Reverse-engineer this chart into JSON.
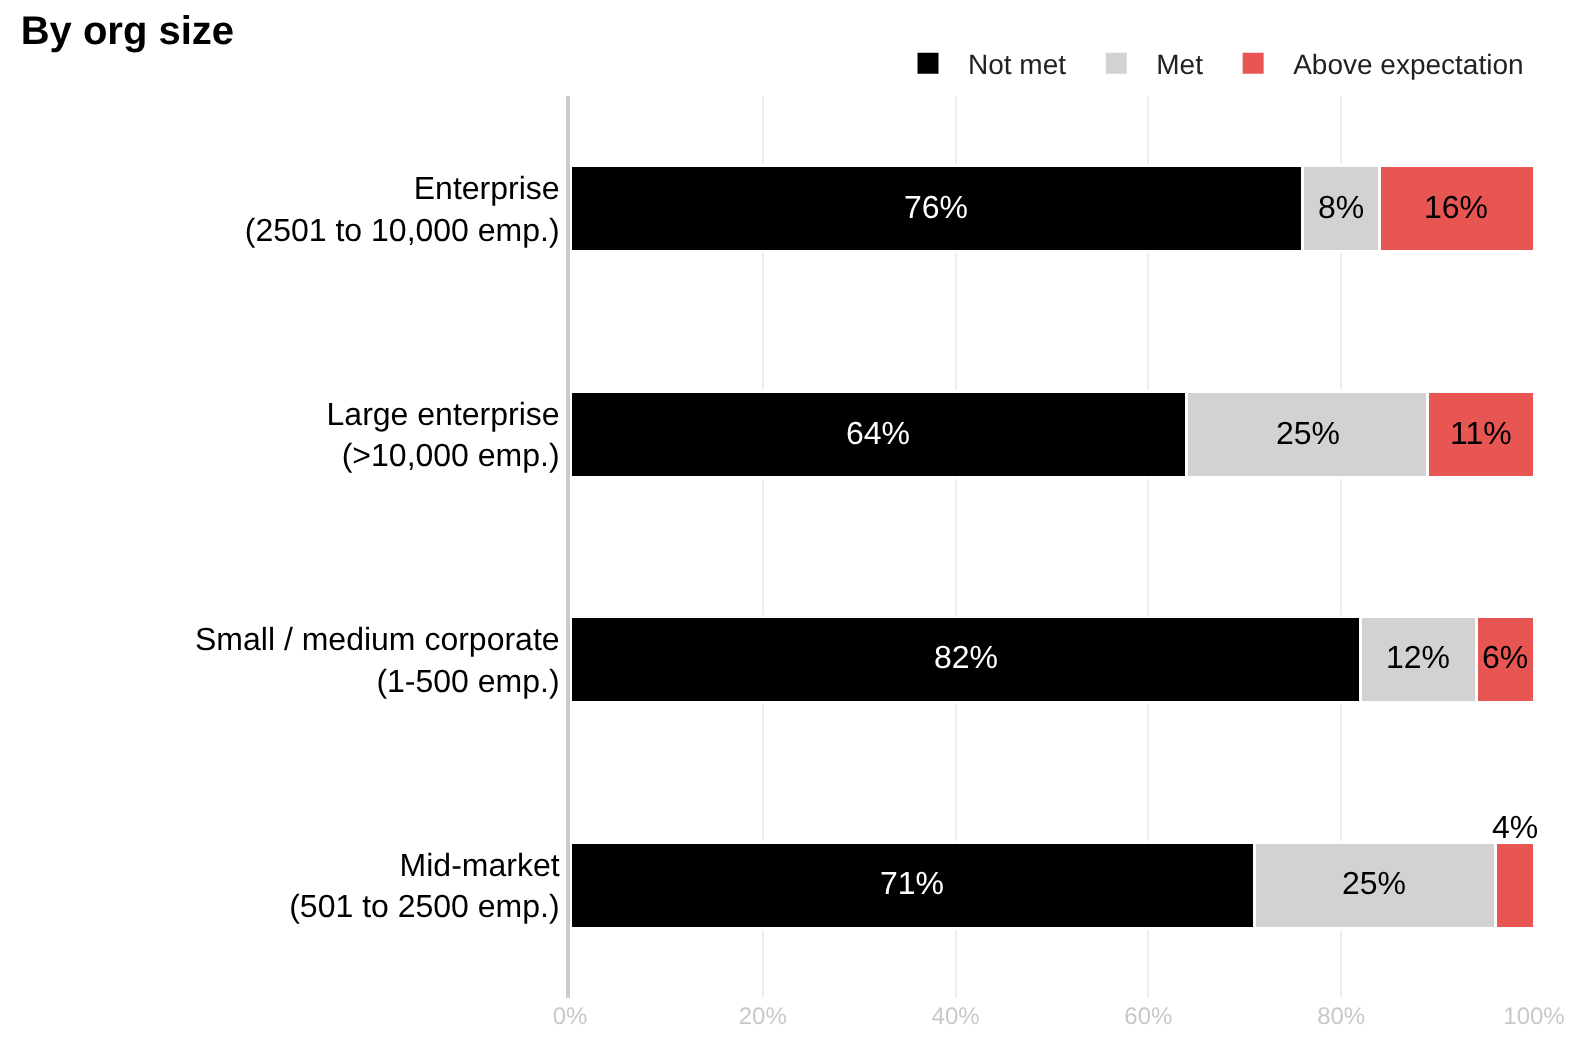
{
  "chart_data": {
    "type": "bar",
    "orientation": "horizontal",
    "stacked": true,
    "title": "By org size",
    "categories": [
      "Enterprise\n(2501 to 10,000 emp.)",
      "Large enterprise\n(>10,000 emp.)",
      "Small / medium corporate\n(1-500 emp.)",
      "Mid-market\n(501 to 2500 emp.)"
    ],
    "series": [
      {
        "name": "Not met",
        "color": "#000000",
        "values": [
          76,
          64,
          82,
          71
        ],
        "value_labels": [
          "76%",
          "64%",
          "82%",
          "71%"
        ]
      },
      {
        "name": "Met",
        "color": "#d3d1d1",
        "values": [
          8,
          25,
          12,
          25
        ],
        "value_labels": [
          "8%",
          "25%",
          "12%",
          "25%"
        ]
      },
      {
        "name": "Above expectation",
        "color": "#e85653",
        "values": [
          16,
          11,
          6,
          4
        ],
        "value_labels": [
          "16%",
          "11%",
          "6%",
          "4%"
        ]
      }
    ],
    "xlim": [
      0,
      100
    ],
    "xticks": [
      {
        "value": 0,
        "label": "0%"
      },
      {
        "value": 20,
        "label": "20%"
      },
      {
        "value": 40,
        "label": "40%"
      },
      {
        "value": 60,
        "label": "60%"
      },
      {
        "value": 80,
        "label": "80%"
      },
      {
        "value": 100,
        "label": "100%"
      }
    ],
    "grid": "x",
    "legend": "top right"
  }
}
